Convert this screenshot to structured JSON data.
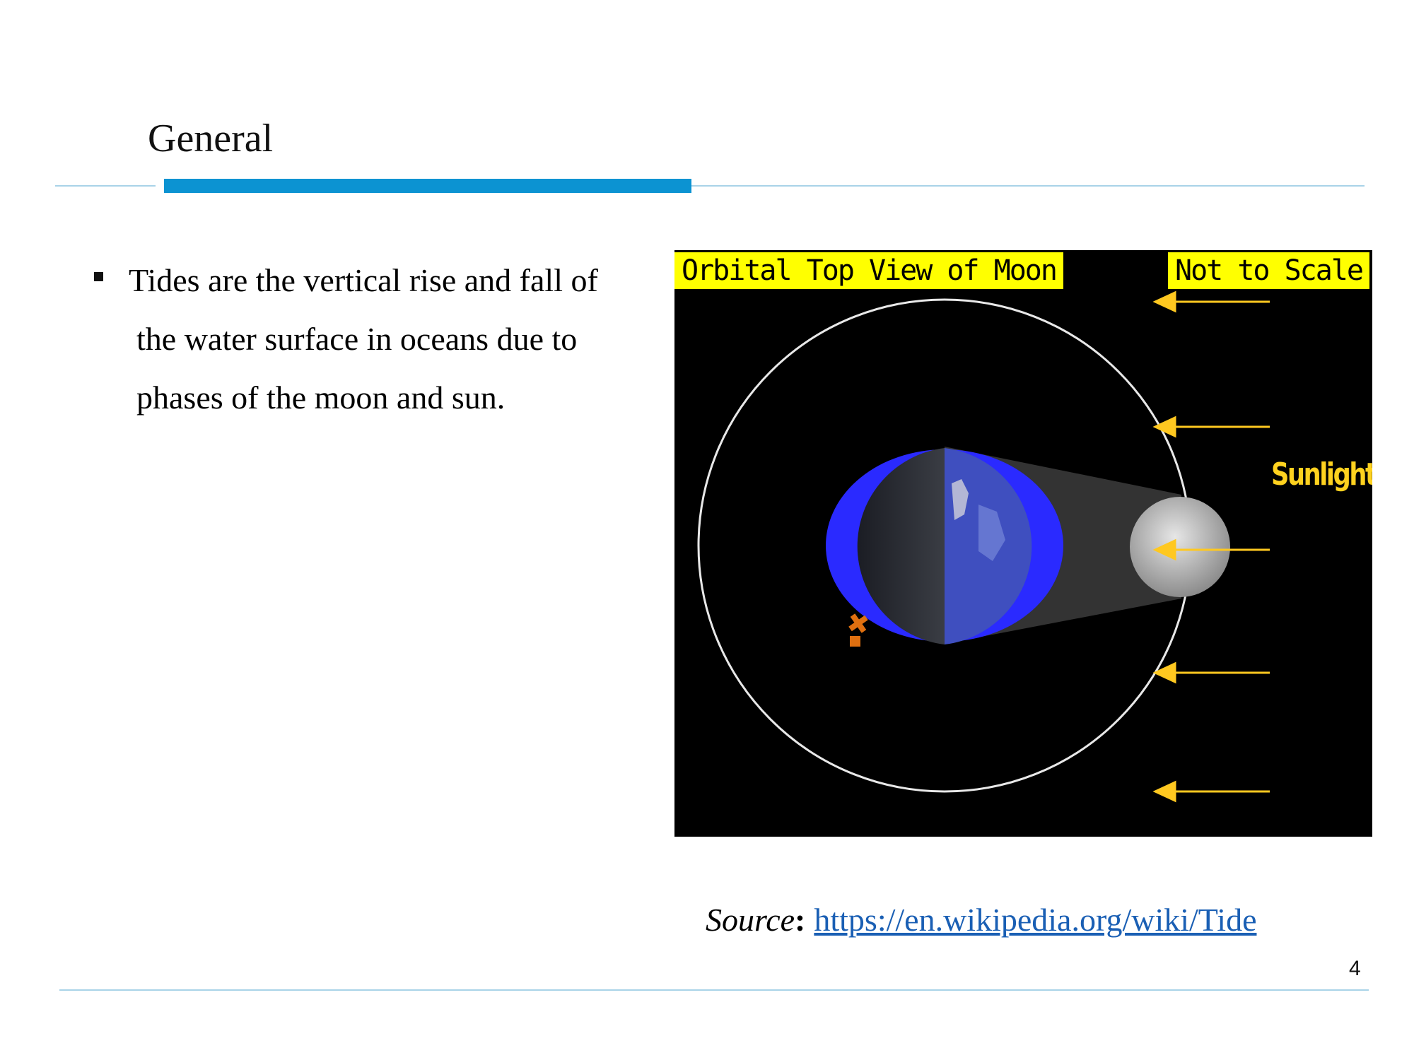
{
  "slide": {
    "title": "General",
    "bullets": [
      {
        "lines": [
          "Tides are the vertical rise and fall of",
          "the water surface in oceans due to",
          "phases of the moon and sun."
        ]
      }
    ],
    "page_number": "4"
  },
  "figure": {
    "label_left": "Orbital Top View of Moon",
    "label_right": "Not to Scale",
    "sunlight_label": "Sunlight",
    "sunlight_arrow_count": 5,
    "colors": {
      "background": "#000000",
      "label_bg": "#ffff00",
      "arrow": "#ffc820",
      "water_bulge": "#2a2aff",
      "orbit": "#e8e8e8"
    }
  },
  "source": {
    "label": "Source",
    "colon": ":",
    "link_text": "https://en.wikipedia.org/wiki/Tide"
  },
  "colors": {
    "accent": "#0c93d2",
    "rule": "#a9d3e8",
    "link": "#1a5fb4"
  }
}
